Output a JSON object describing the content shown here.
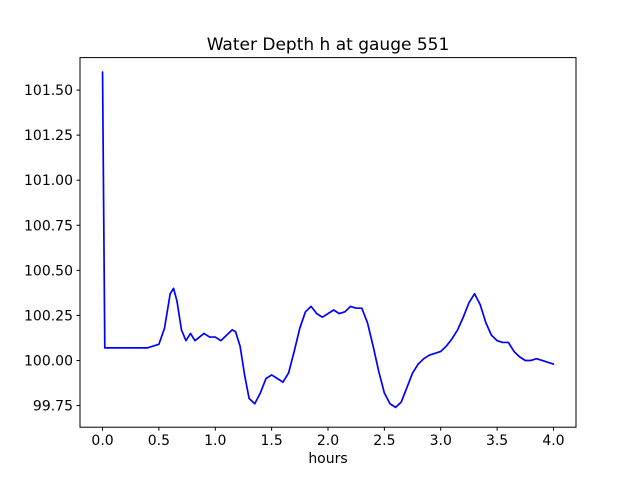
{
  "figure": {
    "title": "Water Depth h at gauge 551",
    "xlabel": "hours",
    "background_color": "#ffffff",
    "axes_frame_color": "#000000",
    "tick_label_color": "#000000"
  },
  "chart_data": {
    "type": "line",
    "title": "Water Depth h at gauge 551",
    "xlabel": "hours",
    "ylabel": "",
    "grid": false,
    "legend": null,
    "line_color": "#0000ff",
    "xlim": [
      -0.2,
      4.2
    ],
    "ylim": [
      99.63,
      101.68
    ],
    "x_ticks": [
      0.0,
      0.5,
      1.0,
      1.5,
      2.0,
      2.5,
      3.0,
      3.5,
      4.0
    ],
    "x_tick_labels": [
      "0.0",
      "0.5",
      "1.0",
      "1.5",
      "2.0",
      "2.5",
      "3.0",
      "3.5",
      "4.0"
    ],
    "y_ticks": [
      99.75,
      100.0,
      100.25,
      100.5,
      100.75,
      101.0,
      101.25,
      101.5
    ],
    "y_tick_labels": [
      "99.75",
      "100.00",
      "100.25",
      "100.50",
      "100.75",
      "101.00",
      "101.25",
      "101.50"
    ],
    "series": [
      {
        "name": "water-depth-gauge-551",
        "x": [
          0.0,
          0.02,
          0.1,
          0.2,
          0.3,
          0.4,
          0.45,
          0.5,
          0.55,
          0.6,
          0.63,
          0.66,
          0.7,
          0.74,
          0.78,
          0.82,
          0.86,
          0.9,
          0.95,
          1.0,
          1.05,
          1.1,
          1.15,
          1.18,
          1.22,
          1.26,
          1.3,
          1.35,
          1.4,
          1.45,
          1.5,
          1.55,
          1.6,
          1.65,
          1.7,
          1.75,
          1.8,
          1.85,
          1.9,
          1.95,
          2.0,
          2.05,
          2.1,
          2.15,
          2.2,
          2.25,
          2.3,
          2.35,
          2.4,
          2.45,
          2.5,
          2.55,
          2.6,
          2.65,
          2.7,
          2.75,
          2.8,
          2.85,
          2.9,
          2.95,
          3.0,
          3.05,
          3.1,
          3.15,
          3.2,
          3.25,
          3.3,
          3.35,
          3.4,
          3.45,
          3.5,
          3.55,
          3.6,
          3.65,
          3.7,
          3.75,
          3.8,
          3.85,
          3.9,
          3.95,
          4.0
        ],
        "y": [
          101.6,
          100.07,
          100.07,
          100.07,
          100.07,
          100.07,
          100.08,
          100.09,
          100.18,
          100.37,
          100.4,
          100.33,
          100.17,
          100.11,
          100.15,
          100.11,
          100.13,
          100.15,
          100.13,
          100.13,
          100.11,
          100.14,
          100.17,
          100.16,
          100.08,
          99.92,
          99.79,
          99.76,
          99.82,
          99.9,
          99.92,
          99.9,
          99.88,
          99.93,
          100.05,
          100.18,
          100.27,
          100.3,
          100.26,
          100.24,
          100.26,
          100.28,
          100.26,
          100.27,
          100.3,
          100.29,
          100.29,
          100.21,
          100.08,
          99.94,
          99.82,
          99.76,
          99.74,
          99.77,
          99.85,
          99.93,
          99.98,
          100.01,
          100.03,
          100.04,
          100.05,
          100.08,
          100.12,
          100.17,
          100.24,
          100.32,
          100.37,
          100.31,
          100.21,
          100.14,
          100.11,
          100.1,
          100.1,
          100.05,
          100.02,
          100.0,
          100.0,
          100.01,
          100.0,
          99.99,
          99.98
        ]
      }
    ]
  }
}
